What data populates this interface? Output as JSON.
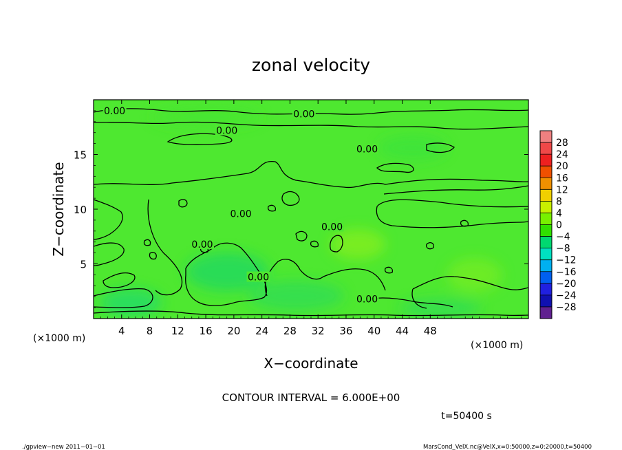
{
  "chart_data": {
    "type": "heatmap",
    "title": "zonal velocity",
    "xlabel": "X−coordinate",
    "ylabel": "Z−coordinate",
    "x_units_left": "(×1000 m)",
    "x_units_right": "(×1000 m)",
    "xlim": [
      0,
      62
    ],
    "ylim": [
      0,
      20
    ],
    "x_ticks": [
      "4",
      "8",
      "12",
      "16",
      "20",
      "24",
      "28",
      "32",
      "36",
      "40",
      "44",
      "48"
    ],
    "x_tick_values": [
      4,
      8,
      12,
      16,
      20,
      24,
      28,
      32,
      36,
      40,
      44,
      48
    ],
    "y_ticks": [
      "5",
      "10",
      "15"
    ],
    "y_tick_values": [
      5,
      10,
      15
    ],
    "colorbar": {
      "labels": [
        "28",
        "24",
        "20",
        "16",
        "12",
        "8",
        "4",
        "0",
        "−4",
        "−8",
        "−12",
        "−16",
        "−20",
        "−24",
        "−28"
      ],
      "colors": [
        "#f08080",
        "#f04848",
        "#ee2020",
        "#f05000",
        "#f09000",
        "#f0d000",
        "#c8f000",
        "#78f000",
        "#30e000",
        "#00d870",
        "#00e0c0",
        "#00b0f0",
        "#0060f0",
        "#2020e0",
        "#1010b0",
        "#602090"
      ]
    },
    "contour_labels": [
      {
        "text": "0.00",
        "x": 3,
        "z": 19
      },
      {
        "text": "0.00",
        "x": 30,
        "z": 18.7
      },
      {
        "text": "0.00",
        "x": 19,
        "z": 17.2
      },
      {
        "text": "0.00",
        "x": 39,
        "z": 15.5
      },
      {
        "text": "0.00",
        "x": 34,
        "z": 8.4
      },
      {
        "text": "0.00",
        "x": 15.5,
        "z": 6.8
      },
      {
        "text": "0.00",
        "x": 23.5,
        "z": 3.8
      },
      {
        "text": "0.00",
        "x": 39,
        "z": 1.8
      },
      {
        "text": "0.00",
        "x": 21,
        "z": 9.6
      }
    ],
    "contour_interval": "CONTOUR INTERVAL = 6.000E+00",
    "time_label": "t=50400 s"
  },
  "footer": {
    "left": "./gpview−new   2011−01−01",
    "right": "MarsCond_VelX.nc@VelX,x=0:50000,z=0:20000,t=50400"
  },
  "colors": {
    "field_base": "#4ee830",
    "contour": "#000000"
  }
}
